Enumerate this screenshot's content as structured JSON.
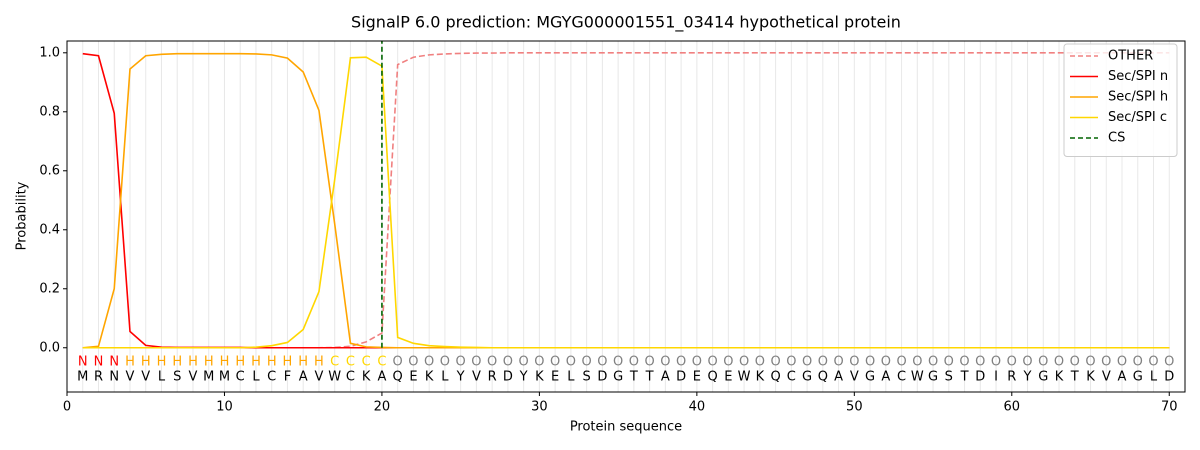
{
  "chart_data": {
    "type": "line",
    "title": "SignalP 6.0 prediction: MGYG000001551_03414 hypothetical protein",
    "x_label": "Protein sequence",
    "y_label": "Probability",
    "xlim": [
      0,
      71
    ],
    "ylim": [
      -0.15,
      1.04
    ],
    "xticks": [
      0,
      10,
      20,
      30,
      40,
      50,
      60,
      70
    ],
    "yticks": [
      {
        "value": 0,
        "label": "0.0"
      },
      0.2,
      0.4,
      0.6,
      0.8,
      {
        "value": 1,
        "label": "1.0"
      }
    ],
    "legend": "upper right",
    "x": [
      1,
      2,
      3,
      4,
      5,
      6,
      7,
      8,
      9,
      10,
      11,
      12,
      13,
      14,
      15,
      16,
      17,
      18,
      19,
      20,
      21,
      22,
      23,
      24,
      25,
      26,
      27,
      28,
      29,
      30,
      31,
      32,
      33,
      34,
      35,
      36,
      37,
      38,
      39,
      40,
      41,
      42,
      43,
      44,
      45,
      46,
      47,
      48,
      49,
      50,
      51,
      52,
      53,
      54,
      55,
      56,
      57,
      58,
      59,
      60,
      61,
      62,
      63,
      64,
      65,
      66,
      67,
      68,
      69,
      70
    ],
    "sequence": [
      "M",
      "R",
      "N",
      "V",
      "V",
      "L",
      "S",
      "V",
      "M",
      "M",
      "C",
      "L",
      "C",
      "F",
      "A",
      "V",
      "W",
      "C",
      "K",
      "A",
      "Q",
      "E",
      "K",
      "L",
      "Y",
      "V",
      "R",
      "D",
      "Y",
      "K",
      "E",
      "L",
      "S",
      "D",
      "G",
      "T",
      "T",
      "A",
      "D",
      "E",
      "Q",
      "E",
      "W",
      "K",
      "Q",
      "C",
      "G",
      "Q",
      "A",
      "V",
      "G",
      "A",
      "C",
      "W",
      "G",
      "S",
      "T",
      "D",
      "I",
      "R",
      "Y",
      "G",
      "K",
      "T",
      "K",
      "V",
      "A",
      "G",
      "L",
      "D"
    ],
    "labels": [
      "N",
      "N",
      "N",
      "H",
      "H",
      "H",
      "H",
      "H",
      "H",
      "H",
      "H",
      "H",
      "H",
      "H",
      "H",
      "H",
      "C",
      "C",
      "C",
      "C",
      "O",
      "O",
      "O",
      "O",
      "O",
      "O",
      "O",
      "O",
      "O",
      "O",
      "O",
      "O",
      "O",
      "O",
      "O",
      "O",
      "O",
      "O",
      "O",
      "O",
      "O",
      "O",
      "O",
      "O",
      "O",
      "O",
      "O",
      "O",
      "O",
      "O",
      "O",
      "O",
      "O",
      "O",
      "O",
      "O",
      "O",
      "O",
      "O",
      "O",
      "O",
      "O",
      "O",
      "O",
      "O",
      "O",
      "O",
      "O",
      "O",
      "O"
    ],
    "label_colors": {
      "N": "#ff0000",
      "H": "#ffa500",
      "C": "#ffd700",
      "O": "#808080"
    },
    "series": [
      {
        "name": "OTHER",
        "color": "#f08080",
        "dashed": true,
        "values": [
          0,
          0,
          0,
          0,
          0,
          0,
          0,
          0,
          0,
          0,
          0,
          0,
          0,
          0,
          0,
          0,
          0.001,
          0.005,
          0.02,
          0.05,
          0.96,
          0.985,
          0.993,
          0.996,
          0.998,
          0.999,
          0.999,
          1,
          1,
          1,
          1,
          1,
          1,
          1,
          1,
          1,
          1,
          1,
          1,
          1,
          1,
          1,
          1,
          1,
          1,
          1,
          1,
          1,
          1,
          1,
          1,
          1,
          1,
          1,
          1,
          1,
          1,
          1,
          1,
          1,
          1,
          1,
          1,
          1,
          1,
          1,
          1,
          1,
          1,
          1
        ]
      },
      {
        "name": "Sec/SPI n",
        "color": "#ff0000",
        "dashed": false,
        "values": [
          0.997,
          0.99,
          0.795,
          0.055,
          0.008,
          0.002,
          0.001,
          0.001,
          0.001,
          0.001,
          0.001,
          0,
          0,
          0,
          0,
          0,
          0,
          0,
          0,
          0,
          0,
          0,
          0,
          0,
          0,
          0,
          0,
          0,
          0,
          0,
          0,
          0,
          0,
          0,
          0,
          0,
          0,
          0,
          0,
          0,
          0,
          0,
          0,
          0,
          0,
          0,
          0,
          0,
          0,
          0,
          0,
          0,
          0,
          0,
          0,
          0,
          0,
          0,
          0,
          0,
          0,
          0,
          0,
          0,
          0,
          0,
          0,
          0,
          0,
          0
        ]
      },
      {
        "name": "Sec/SPI h",
        "color": "#ffa500",
        "dashed": false,
        "values": [
          0,
          0.005,
          0.2,
          0.945,
          0.99,
          0.995,
          0.997,
          0.997,
          0.997,
          0.997,
          0.997,
          0.996,
          0.993,
          0.982,
          0.935,
          0.805,
          0.42,
          0.015,
          0.003,
          0.001,
          0,
          0,
          0,
          0,
          0,
          0,
          0,
          0,
          0,
          0,
          0,
          0,
          0,
          0,
          0,
          0,
          0,
          0,
          0,
          0,
          0,
          0,
          0,
          0,
          0,
          0,
          0,
          0,
          0,
          0,
          0,
          0,
          0,
          0,
          0,
          0,
          0,
          0,
          0,
          0,
          0,
          0,
          0,
          0,
          0,
          0,
          0,
          0,
          0,
          0
        ]
      },
      {
        "name": "Sec/SPI c",
        "color": "#ffd700",
        "dashed": false,
        "values": [
          0,
          0,
          0,
          0,
          0,
          0,
          0,
          0,
          0,
          0,
          0,
          0.002,
          0.007,
          0.018,
          0.062,
          0.19,
          0.57,
          0.983,
          0.985,
          0.955,
          0.035,
          0.015,
          0.007,
          0.004,
          0.002,
          0.001,
          0,
          0,
          0,
          0,
          0,
          0,
          0,
          0,
          0,
          0,
          0,
          0,
          0,
          0,
          0,
          0,
          0,
          0,
          0,
          0,
          0,
          0,
          0,
          0,
          0,
          0,
          0,
          0,
          0,
          0,
          0,
          0,
          0,
          0,
          0,
          0,
          0,
          0,
          0,
          0,
          0,
          0,
          0,
          0
        ]
      }
    ],
    "cs": {
      "name": "CS",
      "color": "#006400",
      "x": 20
    }
  }
}
